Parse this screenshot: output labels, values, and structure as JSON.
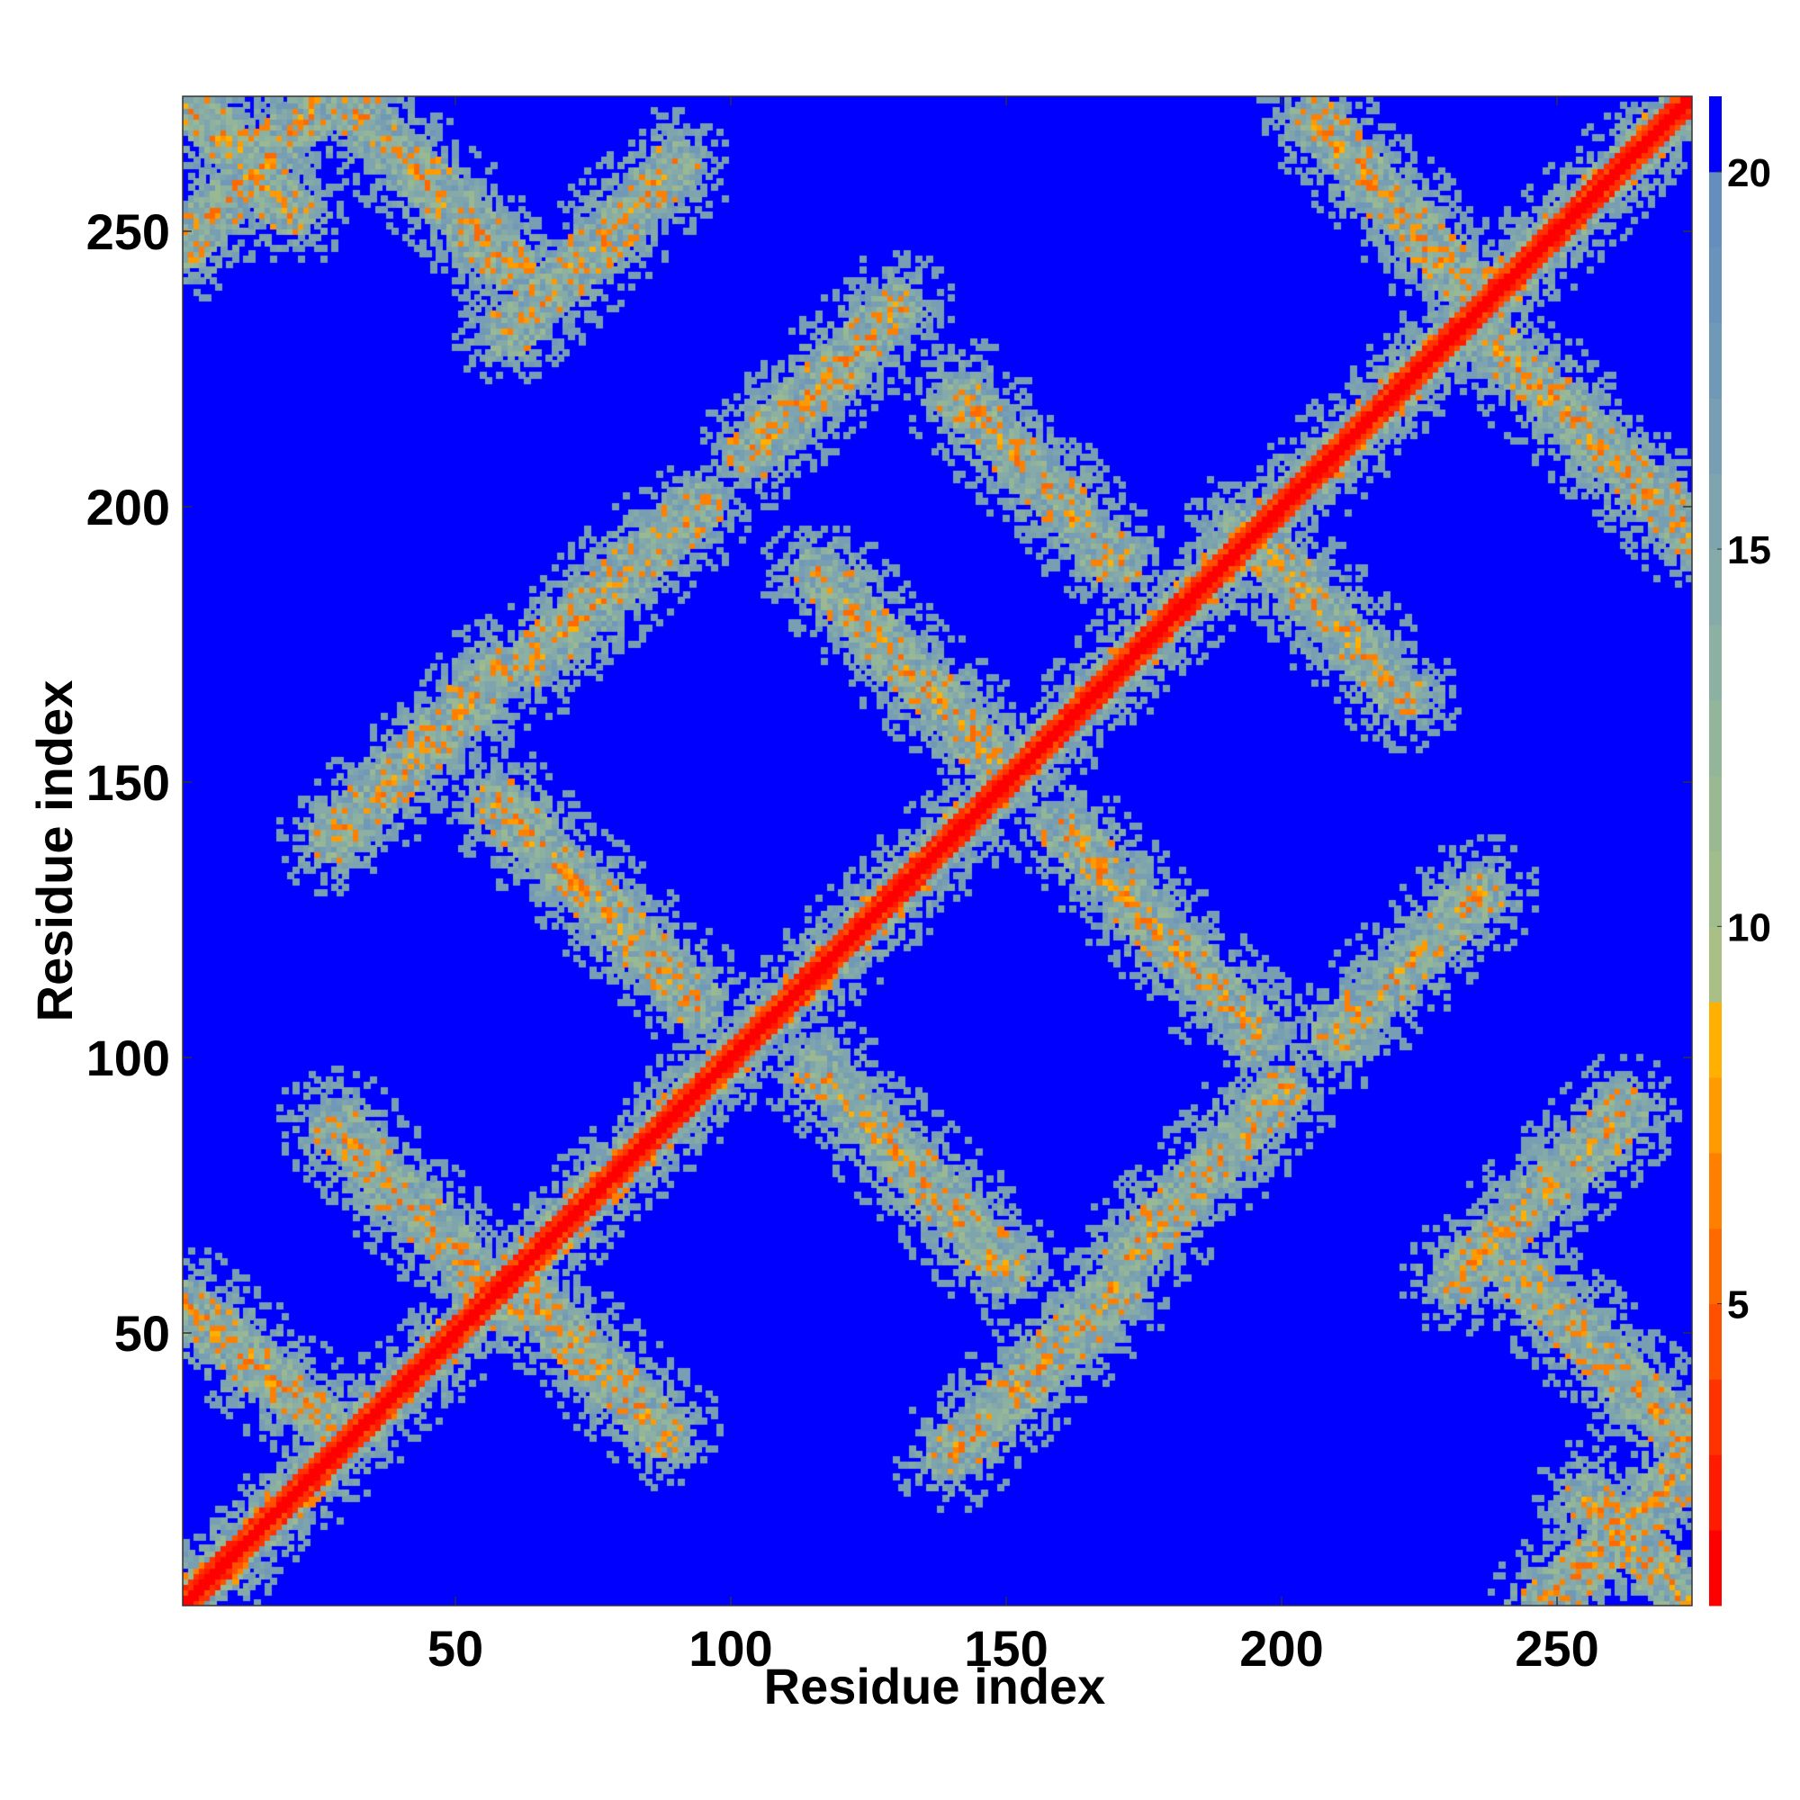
{
  "chart_data": {
    "type": "heatmap",
    "title": "",
    "xlabel": "Residue index",
    "ylabel": "Residue index",
    "n_residues": 274,
    "xlim": [
      1,
      274
    ],
    "ylim": [
      1,
      274
    ],
    "x_ticks": [
      50,
      100,
      150,
      200,
      250
    ],
    "y_ticks": [
      50,
      100,
      150,
      200,
      250
    ],
    "colorbar": {
      "range": [
        1,
        21
      ],
      "ticks": [
        5,
        10,
        15,
        20
      ],
      "segments": [
        {
          "from": 1,
          "to": 2,
          "color": "#ff0000"
        },
        {
          "from": 2,
          "to": 3,
          "color": "#ff1a00"
        },
        {
          "from": 3,
          "to": 4,
          "color": "#ff3300"
        },
        {
          "from": 4,
          "to": 5,
          "color": "#ff5000"
        },
        {
          "from": 5,
          "to": 6,
          "color": "#ff6a00"
        },
        {
          "from": 6,
          "to": 7,
          "color": "#ff8000"
        },
        {
          "from": 7,
          "to": 8,
          "color": "#ff9a00"
        },
        {
          "from": 8,
          "to": 9,
          "color": "#ffb000"
        },
        {
          "from": 9,
          "to": 10,
          "color": "#a9bf86"
        },
        {
          "from": 10,
          "to": 11,
          "color": "#a2bd8c"
        },
        {
          "from": 11,
          "to": 12,
          "color": "#9ab993"
        },
        {
          "from": 12,
          "to": 13,
          "color": "#93b59a"
        },
        {
          "from": 13,
          "to": 14,
          "color": "#8cb0a1"
        },
        {
          "from": 14,
          "to": 15,
          "color": "#85aaa7"
        },
        {
          "from": 15,
          "to": 16,
          "color": "#7ea4ad"
        },
        {
          "from": 16,
          "to": 17,
          "color": "#779eb2"
        },
        {
          "from": 17,
          "to": 18,
          "color": "#7098b7"
        },
        {
          "from": 18,
          "to": 19,
          "color": "#6a93bb"
        },
        {
          "from": 19,
          "to": 20,
          "color": "#658ebf"
        },
        {
          "from": 20,
          "to": 21,
          "color": "#0000ff"
        }
      ]
    },
    "background_color": "#0000ff",
    "contact_bands": [
      {
        "kind": "diagonal",
        "p": [
          1,
          274
        ],
        "q": [
          1,
          274
        ]
      },
      {
        "kind": "anti",
        "p": [
          1,
          25
        ],
        "q": [
          55,
          35
        ]
      },
      {
        "kind": "anti",
        "p": [
          28,
          60
        ],
        "q": [
          88,
          54
        ]
      },
      {
        "kind": "anti",
        "p": [
          62,
          88
        ],
        "q": [
          58,
          32
        ]
      },
      {
        "kind": "anti",
        "p": [
          58,
          94
        ],
        "q": [
          146,
          110
        ]
      },
      {
        "kind": "anti",
        "p": [
          116,
          150
        ],
        "q": [
          98,
          62
        ]
      },
      {
        "kind": "anti",
        "p": [
          116,
          150
        ],
        "q": [
          188,
          152
        ]
      },
      {
        "kind": "anti",
        "p": [
          160,
          196
        ],
        "q": [
          142,
          104
        ]
      },
      {
        "kind": "anti",
        "p": [
          142,
          170
        ],
        "q": [
          220,
          190
        ]
      },
      {
        "kind": "anti",
        "p": [
          193,
          222
        ],
        "q": [
          196,
          166
        ]
      },
      {
        "kind": "anti",
        "p": [
          206,
          234
        ],
        "q": [
          270,
          240
        ]
      },
      {
        "kind": "anti",
        "p": [
          236,
          274
        ],
        "q": [
          232,
          196
        ]
      },
      {
        "kind": "anti",
        "p": [
          30,
          60
        ],
        "q": [
          274,
          244
        ]
      },
      {
        "kind": "anti",
        "p": [
          1,
          20
        ],
        "q": [
          274,
          254
        ]
      },
      {
        "kind": "anti",
        "p": [
          244,
          274
        ],
        "q": [
          60,
          30
        ]
      },
      {
        "kind": "anti",
        "p": [
          256,
          274
        ],
        "q": [
          20,
          1
        ]
      },
      {
        "kind": "pos",
        "p": [
          1,
          24
        ],
        "q": [
          248,
          272
        ]
      },
      {
        "kind": "pos",
        "p": [
          248,
          272
        ],
        "q": [
          1,
          24
        ]
      },
      {
        "kind": "pos",
        "p": [
          28,
          58
        ],
        "q": [
          140,
          170
        ]
      },
      {
        "kind": "pos",
        "p": [
          140,
          170
        ],
        "q": [
          28,
          58
        ]
      },
      {
        "kind": "pos",
        "p": [
          64,
          94
        ],
        "q": [
          172,
          200
        ]
      },
      {
        "kind": "pos",
        "p": [
          172,
          200
        ],
        "q": [
          64,
          94
        ]
      },
      {
        "kind": "pos",
        "p": [
          104,
          130
        ],
        "q": [
          210,
          236
        ]
      },
      {
        "kind": "pos",
        "p": [
          210,
          236
        ],
        "q": [
          104,
          130
        ]
      },
      {
        "kind": "pos",
        "p": [
          232,
          262
        ],
        "q": [
          60,
          90
        ]
      },
      {
        "kind": "pos",
        "p": [
          60,
          90
        ],
        "q": [
          232,
          262
        ]
      }
    ]
  }
}
